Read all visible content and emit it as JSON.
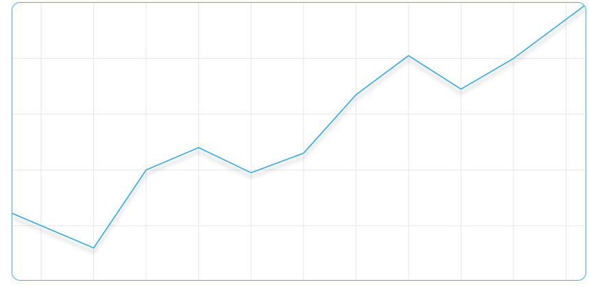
{
  "chart_data": {
    "type": "line",
    "title": "",
    "xlabel": "",
    "ylabel": "",
    "x": [
      0,
      1,
      2,
      3,
      4,
      5,
      6,
      7,
      8,
      9,
      10
    ],
    "series": [
      {
        "values": [
          1.0,
          0.6,
          2.0,
          2.4,
          1.95,
          2.3,
          3.35,
          4.05,
          3.45,
          4.0,
          4.7
        ],
        "color": "#29abf0"
      }
    ],
    "xlim": [
      -0.55,
      10.4
    ],
    "ylim": [
      0,
      5
    ],
    "grid": true,
    "legend": "none"
  },
  "colors": {
    "line": "#29abf0",
    "grid": "#e6e6e6",
    "border": "#33b5f0",
    "background": "#ffffff"
  }
}
